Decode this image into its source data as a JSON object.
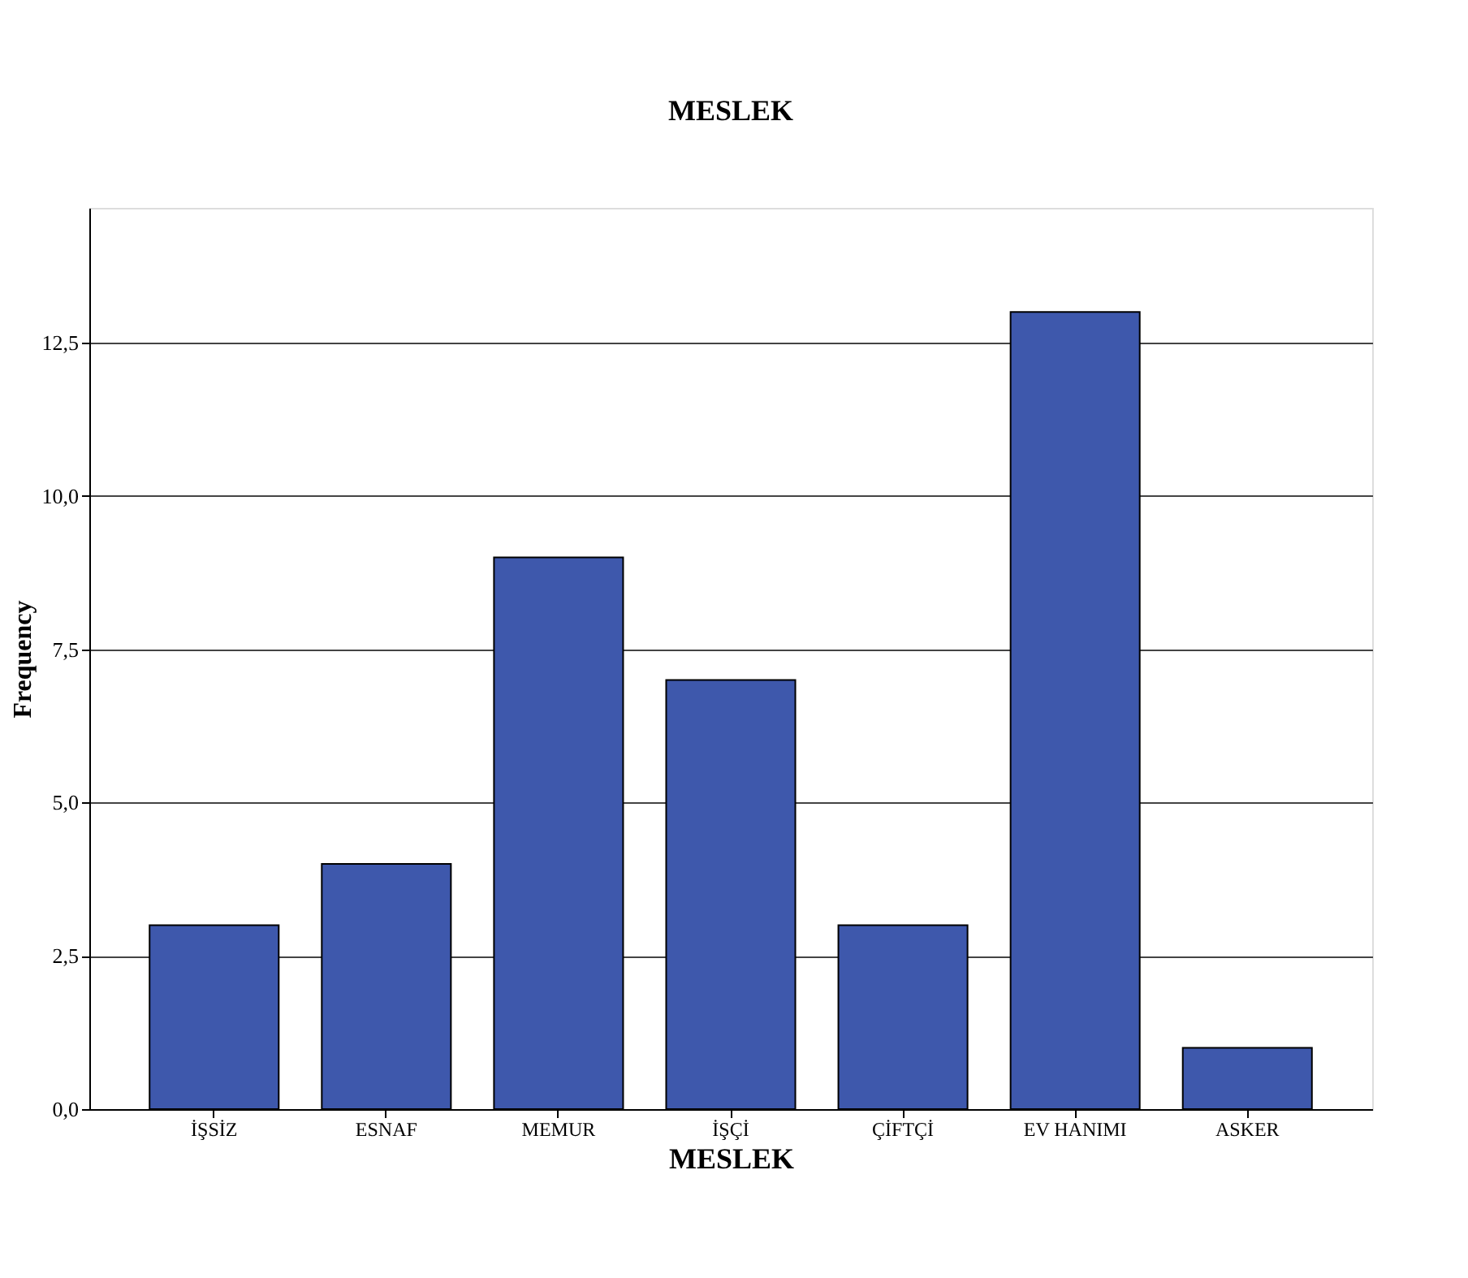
{
  "chart_data": {
    "type": "bar",
    "title": "MESLEK",
    "xlabel": "MESLEK",
    "ylabel": "Frequency",
    "categories": [
      "İŞSİZ",
      "ESNAF",
      "MEMUR",
      "İŞÇİ",
      "ÇİFTÇİ",
      "EV HANIMI",
      "ASKER"
    ],
    "values": [
      3,
      4,
      9,
      7,
      3,
      13,
      1
    ],
    "color": "#3e58ac",
    "ylim": [
      0,
      14.7
    ],
    "yticks": [
      {
        "value": 0,
        "label": "0,0"
      },
      {
        "value": 2.5,
        "label": "2,5"
      },
      {
        "value": 5,
        "label": "5,0"
      },
      {
        "value": 7.5,
        "label": "7,5"
      },
      {
        "value": 10,
        "label": "10,0"
      },
      {
        "value": 12.5,
        "label": "12,5"
      }
    ],
    "grid": "y",
    "legend": false
  }
}
